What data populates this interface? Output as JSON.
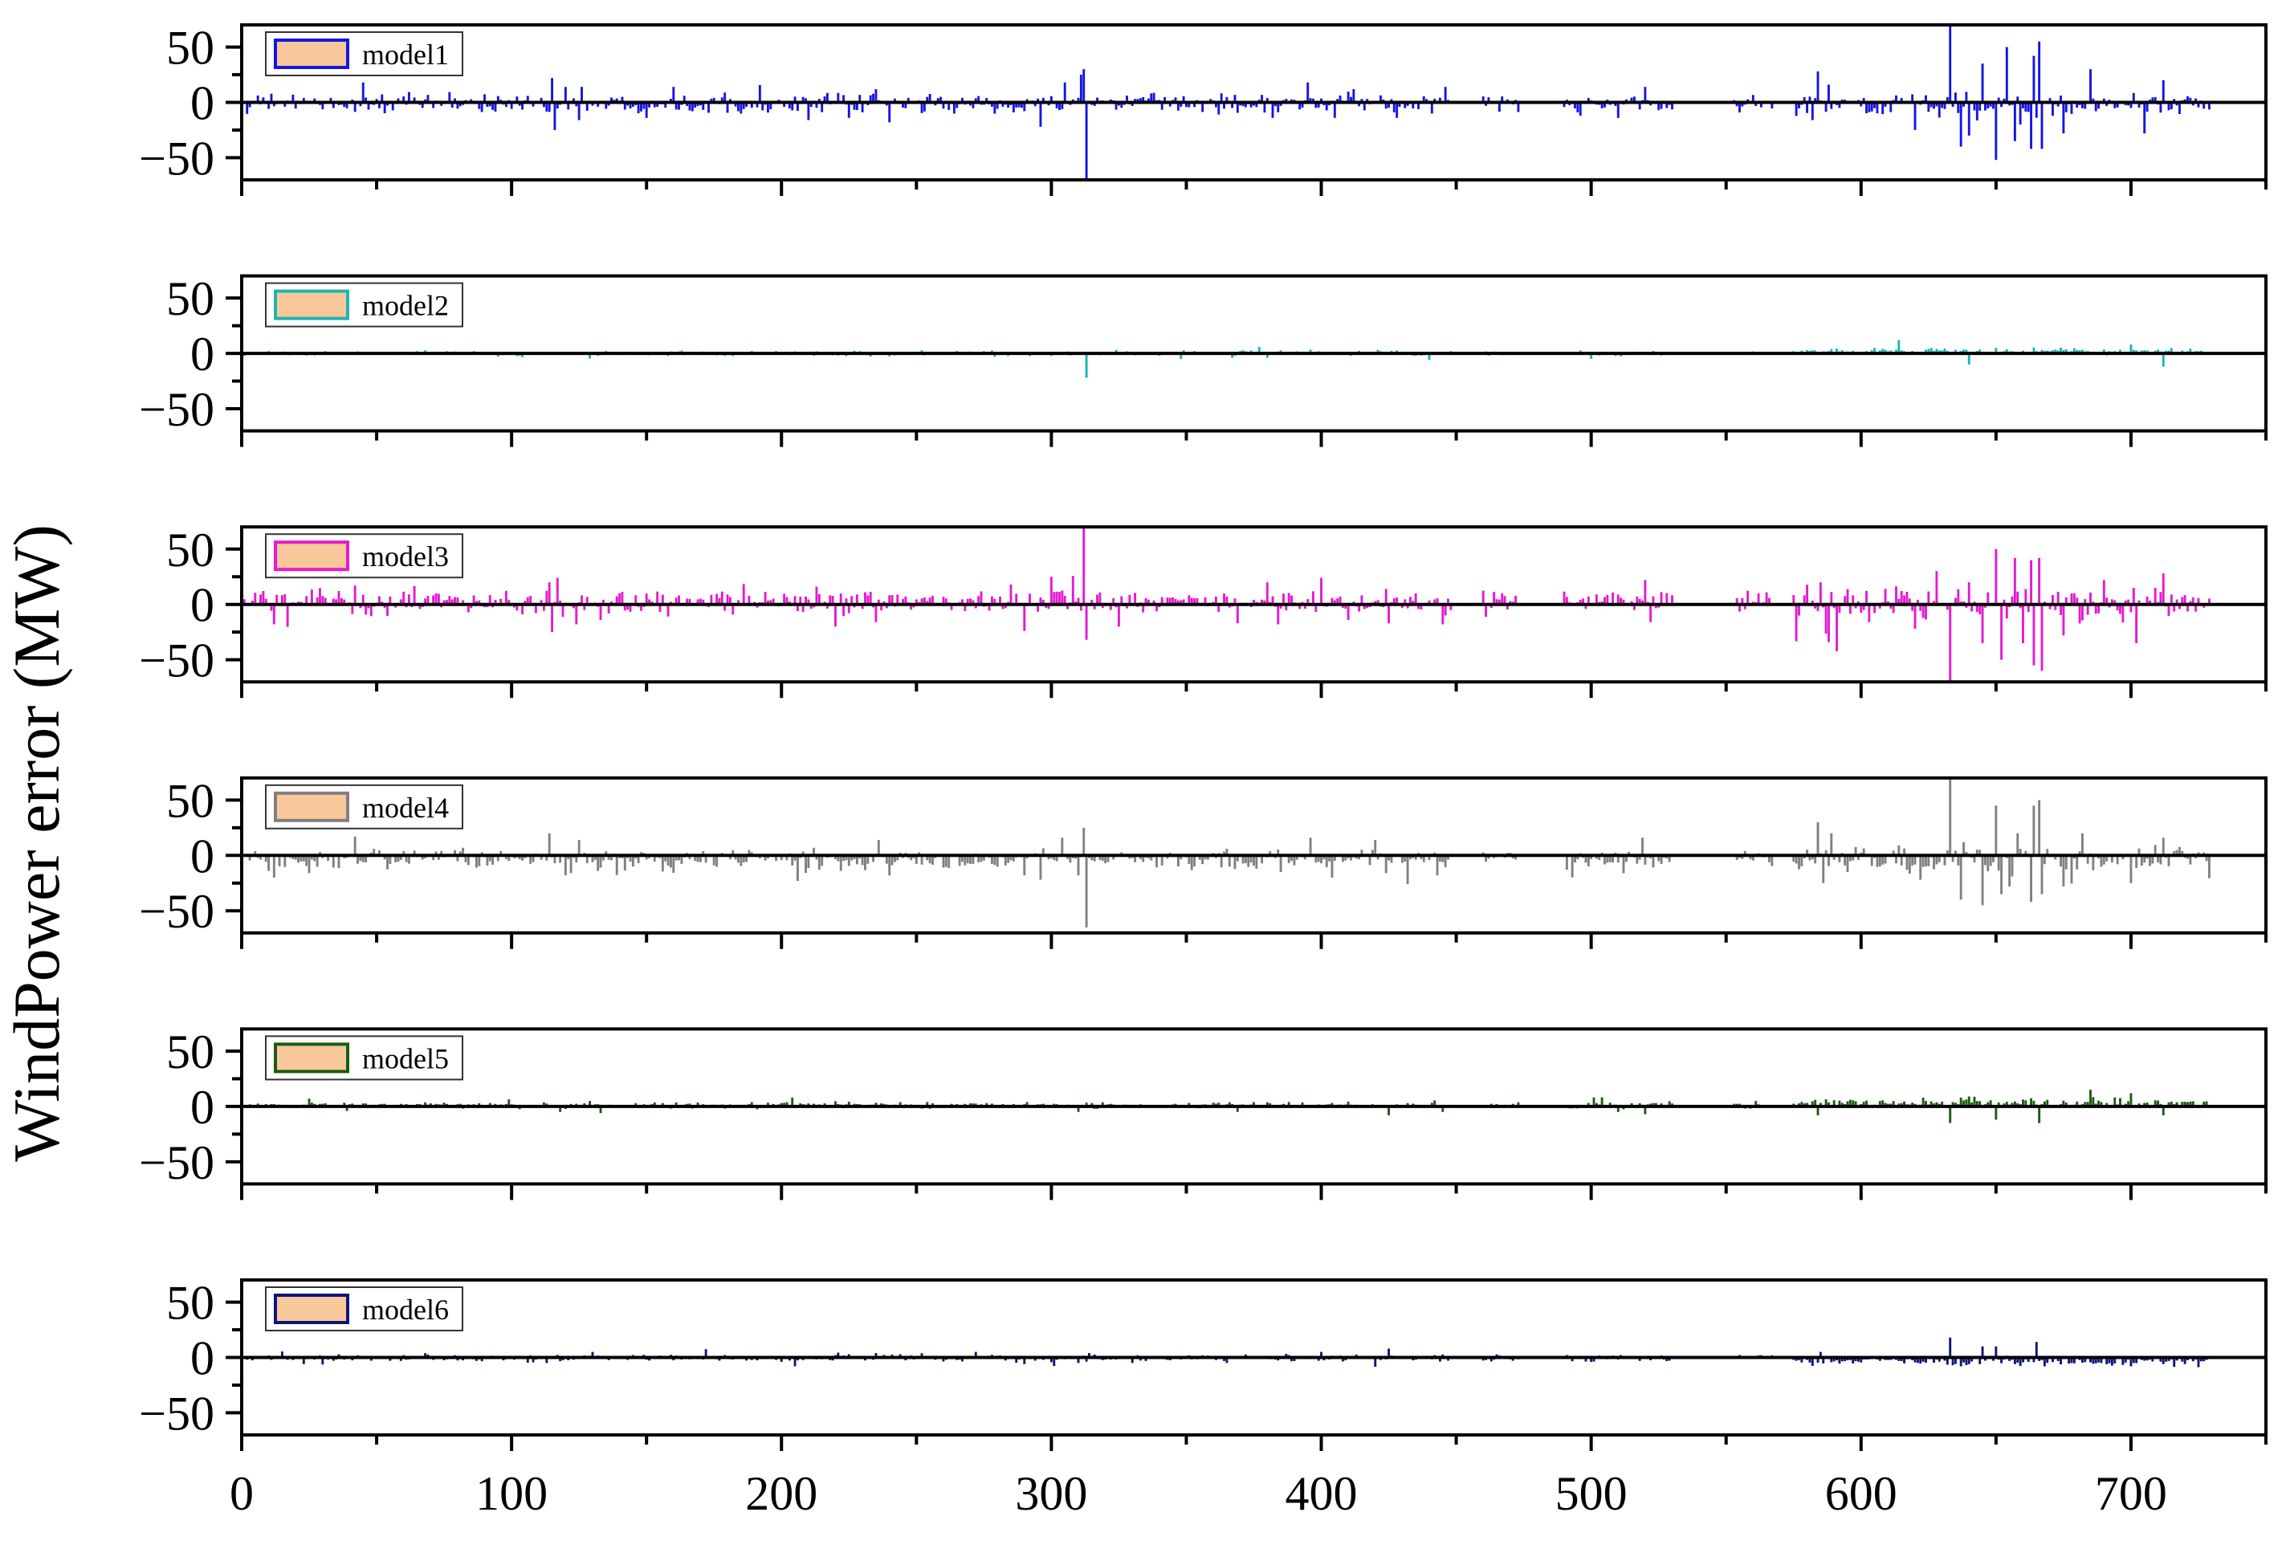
{
  "chart_data": {
    "type": "bar",
    "ylabel": "WindPower error (MW)",
    "xlabel": "",
    "xlim": [
      0,
      750
    ],
    "ylim": [
      -70,
      70
    ],
    "x_ticks": [
      "0",
      "100",
      "200",
      "300",
      "400",
      "500",
      "600",
      "700"
    ],
    "y_ticks": [
      "50",
      "0",
      "−50"
    ],
    "legend_position": "top-left",
    "legend_swatch_fill": "#f8c89a",
    "x_range": [
      1,
      729
    ],
    "gaps": [
      [
        448,
        460
      ],
      [
        473,
        490
      ],
      [
        530,
        553
      ],
      [
        567,
        575
      ]
    ],
    "series": [
      {
        "name": "model1",
        "color": "#1414e6",
        "events": [
          [
            45,
            18
          ],
          [
            115,
            22
          ],
          [
            116,
            -25
          ],
          [
            120,
            14
          ],
          [
            125,
            -16
          ],
          [
            126,
            14
          ],
          [
            150,
            -14
          ],
          [
            160,
            14
          ],
          [
            210,
            -16
          ],
          [
            225,
            -14
          ],
          [
            235,
            12
          ],
          [
            240,
            -18
          ],
          [
            296,
            -22
          ],
          [
            305,
            18
          ],
          [
            311,
            25
          ],
          [
            312,
            30
          ],
          [
            313,
            -75
          ],
          [
            382,
            -14
          ],
          [
            395,
            18
          ],
          [
            405,
            -14
          ],
          [
            412,
            12
          ],
          [
            428,
            -14
          ],
          [
            446,
            14
          ],
          [
            496,
            -12
          ],
          [
            510,
            -14
          ],
          [
            520,
            14
          ],
          [
            582,
            -16
          ],
          [
            584,
            28
          ],
          [
            588,
            16
          ],
          [
            633,
            72
          ],
          [
            637,
            -40
          ],
          [
            640,
            -30
          ],
          [
            645,
            35
          ],
          [
            650,
            -52
          ],
          [
            654,
            50
          ],
          [
            657,
            -35
          ],
          [
            663,
            -42
          ],
          [
            664,
            42
          ],
          [
            666,
            55
          ],
          [
            667,
            -42
          ],
          [
            675,
            -28
          ],
          [
            685,
            30
          ],
          [
            705,
            -28
          ],
          [
            712,
            20
          ]
        ],
        "sigma_mid": 4,
        "sigma_late": 6,
        "bias": -1,
        "late_bias": -3
      },
      {
        "name": "model2",
        "color": "#1fb3b3",
        "events": [
          [
            313,
            -22
          ],
          [
            348,
            -5
          ],
          [
            367,
            -4
          ],
          [
            440,
            -6
          ],
          [
            500,
            -5
          ],
          [
            605,
            5
          ],
          [
            640,
            -10
          ],
          [
            650,
            5
          ],
          [
            700,
            8
          ],
          [
            712,
            -12
          ]
        ],
        "sigma_mid": 1.2,
        "sigma_late": 1.5,
        "bias": 0,
        "late_bias": 2
      },
      {
        "name": "model3",
        "color": "#e619d1",
        "events": [
          [
            12,
            -18
          ],
          [
            42,
            17
          ],
          [
            114,
            20
          ],
          [
            115,
            -25
          ],
          [
            117,
            24
          ],
          [
            124,
            -18
          ],
          [
            133,
            -14
          ],
          [
            213,
            16
          ],
          [
            220,
            -20
          ],
          [
            235,
            -16
          ],
          [
            285,
            18
          ],
          [
            290,
            -24
          ],
          [
            300,
            25
          ],
          [
            312,
            70
          ],
          [
            313,
            -32
          ],
          [
            325,
            -20
          ],
          [
            369,
            -17
          ],
          [
            380,
            20
          ],
          [
            384,
            -18
          ],
          [
            400,
            24
          ],
          [
            410,
            -14
          ],
          [
            424,
            14
          ],
          [
            425,
            -17
          ],
          [
            445,
            -18
          ],
          [
            520,
            22
          ],
          [
            522,
            -16
          ],
          [
            585,
            20
          ],
          [
            588,
            -34
          ],
          [
            620,
            -22
          ],
          [
            628,
            30
          ],
          [
            633,
            -72
          ],
          [
            640,
            20
          ],
          [
            645,
            -35
          ],
          [
            650,
            50
          ],
          [
            652,
            -50
          ],
          [
            657,
            42
          ],
          [
            660,
            -35
          ],
          [
            663,
            40
          ],
          [
            664,
            -55
          ],
          [
            666,
            42
          ],
          [
            667,
            -60
          ],
          [
            675,
            -28
          ],
          [
            690,
            22
          ],
          [
            702,
            -35
          ],
          [
            712,
            28
          ]
        ],
        "sigma_mid": 5,
        "sigma_late": 7,
        "bias": 2,
        "late_bias": 0
      },
      {
        "name": "model4",
        "color": "#808080",
        "events": [
          [
            10,
            -14
          ],
          [
            12,
            -20
          ],
          [
            25,
            -16
          ],
          [
            42,
            17
          ],
          [
            114,
            20
          ],
          [
            120,
            -18
          ],
          [
            125,
            14
          ],
          [
            132,
            -14
          ],
          [
            222,
            -14
          ],
          [
            236,
            14
          ],
          [
            240,
            -18
          ],
          [
            290,
            -18
          ],
          [
            296,
            -22
          ],
          [
            304,
            16
          ],
          [
            310,
            -18
          ],
          [
            312,
            25
          ],
          [
            313,
            -65
          ],
          [
            385,
            -15
          ],
          [
            396,
            16
          ],
          [
            404,
            -20
          ],
          [
            420,
            14
          ],
          [
            424,
            -16
          ],
          [
            443,
            -18
          ],
          [
            512,
            -16
          ],
          [
            519,
            16
          ],
          [
            584,
            30
          ],
          [
            586,
            -25
          ],
          [
            589,
            20
          ],
          [
            622,
            -22
          ],
          [
            633,
            72
          ],
          [
            637,
            -40
          ],
          [
            645,
            -45
          ],
          [
            650,
            45
          ],
          [
            652,
            -35
          ],
          [
            655,
            -28
          ],
          [
            658,
            20
          ],
          [
            663,
            -42
          ],
          [
            664,
            45
          ],
          [
            666,
            50
          ],
          [
            667,
            -35
          ],
          [
            675,
            -28
          ],
          [
            682,
            20
          ],
          [
            700,
            -25
          ],
          [
            712,
            16
          ]
        ],
        "sigma_mid": 4,
        "sigma_late": 6,
        "bias": -3,
        "late_bias": -3
      },
      {
        "name": "model5",
        "color": "#1e5a14",
        "events": [
          [
            25,
            7
          ],
          [
            118,
            -5
          ],
          [
            133,
            -6
          ],
          [
            204,
            8
          ],
          [
            310,
            -5
          ],
          [
            369,
            -5
          ],
          [
            425,
            -8
          ],
          [
            445,
            -5
          ],
          [
            510,
            -5
          ],
          [
            520,
            -7
          ],
          [
            584,
            -8
          ],
          [
            633,
            -15
          ],
          [
            637,
            8
          ],
          [
            640,
            9
          ],
          [
            650,
            -12
          ],
          [
            666,
            -15
          ],
          [
            700,
            12
          ],
          [
            712,
            -8
          ]
        ],
        "sigma_mid": 1.5,
        "sigma_late": 2,
        "bias": 1,
        "late_bias": 3
      },
      {
        "name": "model6",
        "color": "#0f1478",
        "events": [
          [
            23,
            -6
          ],
          [
            113,
            -5
          ],
          [
            130,
            5
          ],
          [
            205,
            -8
          ],
          [
            235,
            4
          ],
          [
            290,
            -6
          ],
          [
            310,
            -5
          ],
          [
            365,
            -5
          ],
          [
            400,
            5
          ],
          [
            425,
            8
          ],
          [
            500,
            -4
          ],
          [
            585,
            5
          ],
          [
            633,
            18
          ],
          [
            637,
            -8
          ],
          [
            640,
            -6
          ],
          [
            645,
            10
          ],
          [
            650,
            10
          ],
          [
            657,
            -6
          ],
          [
            665,
            14
          ],
          [
            668,
            -8
          ],
          [
            700,
            -8
          ],
          [
            712,
            -6
          ]
        ],
        "sigma_mid": 1.5,
        "sigma_late": 2,
        "bias": -0.5,
        "late_bias": -3
      }
    ]
  }
}
